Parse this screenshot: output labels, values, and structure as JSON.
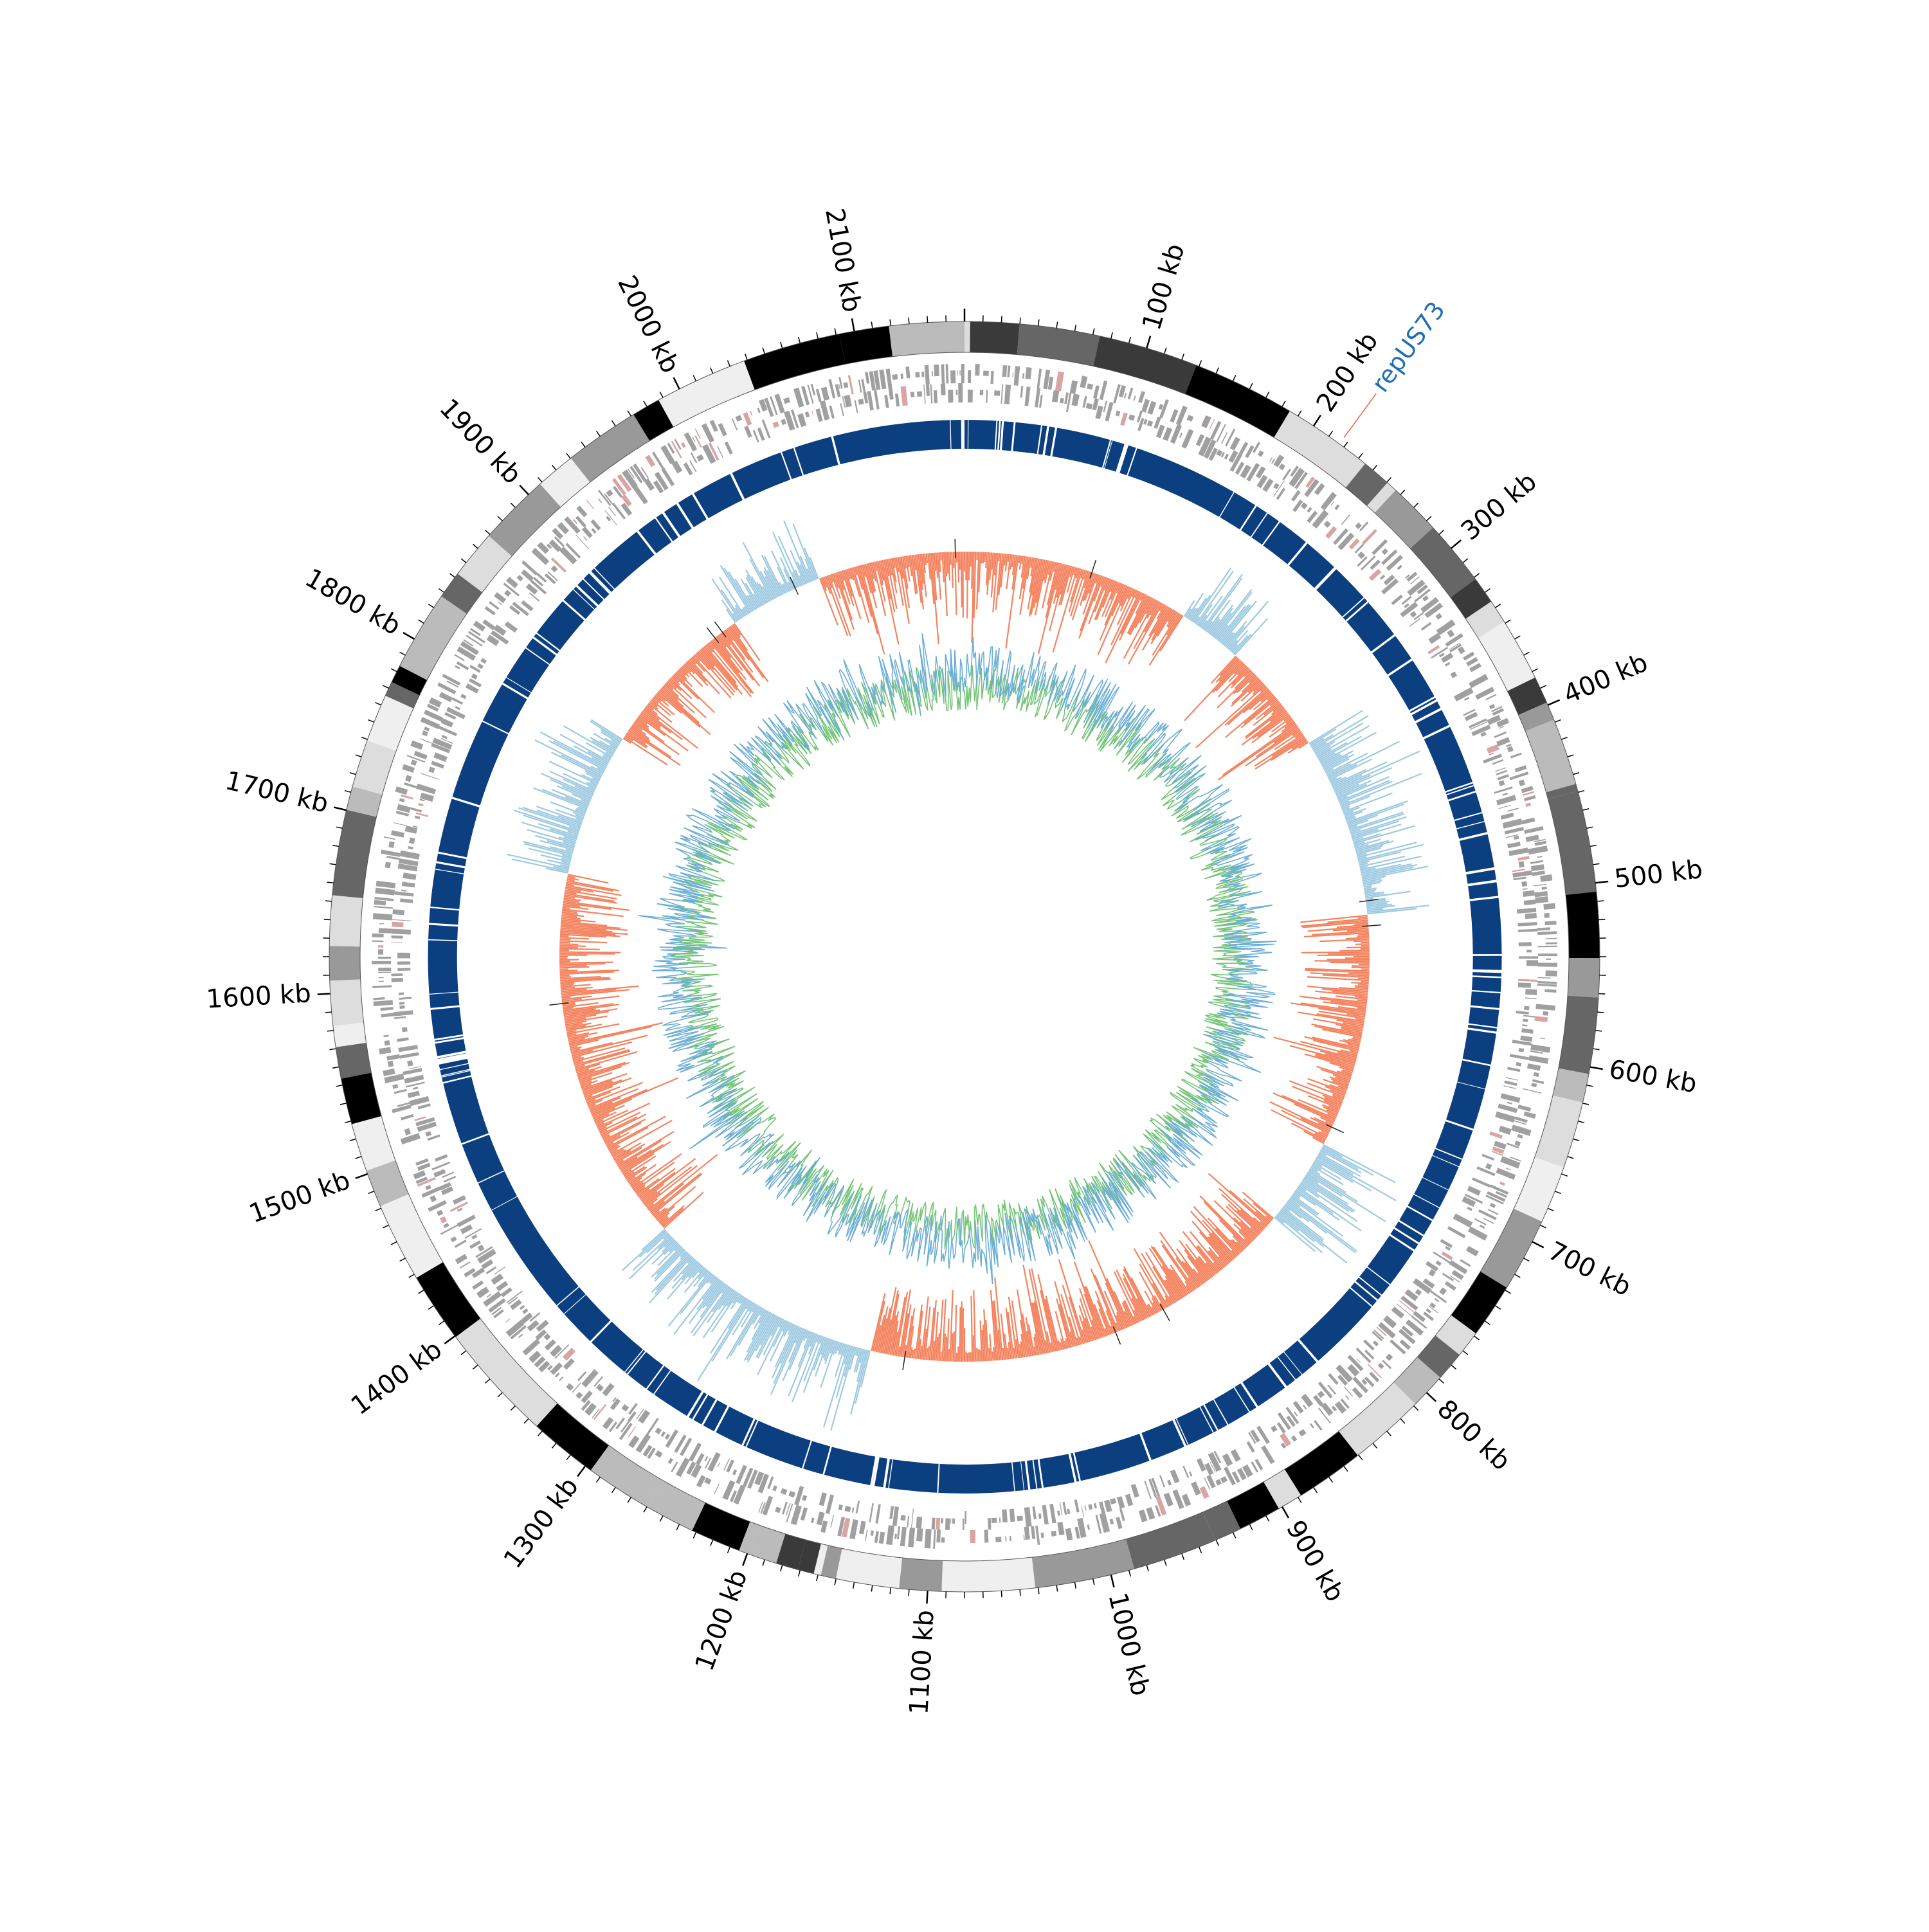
{
  "genome": {
    "length_kb": 2160,
    "tick_labels": [
      "100 kb",
      "200 kb",
      "300 kb",
      "400 kb",
      "500 kb",
      "600 kb",
      "700 kb",
      "800 kb",
      "900 kb",
      "1000 kb",
      "1100 kb",
      "1200 kb",
      "1300 kb",
      "1400 kb",
      "1500 kb",
      "1600 kb",
      "1700 kb",
      "1800 kb",
      "1900 kb",
      "2000 kb",
      "2100 kb"
    ],
    "tick_positions_kb": [
      100,
      200,
      300,
      400,
      500,
      600,
      700,
      800,
      900,
      1000,
      1100,
      1200,
      1300,
      1400,
      1500,
      1600,
      1700,
      1800,
      1900,
      2000,
      2100
    ]
  },
  "marker": {
    "label": "repUS73",
    "position_kb": 217,
    "label_color": "#1f6fb4",
    "line_color": "#e8633e"
  },
  "colors": {
    "bands_palette": [
      "#000000",
      "#3a3a3a",
      "#666666",
      "#999999",
      "#bbbbbb",
      "#dddddd",
      "#efefef"
    ],
    "gene_gray": "#a0a0a0",
    "gene_pink": "#d8a4a4",
    "cds_ring": "#0b3f7f",
    "skew_positive": "#9ecae1",
    "skew_negative": "#f4835f",
    "skew_tick_dark": "#222222",
    "gc_blue": "#6baed6",
    "gc_green": "#74c476",
    "tick_line": "#000000"
  },
  "legend": "none"
}
